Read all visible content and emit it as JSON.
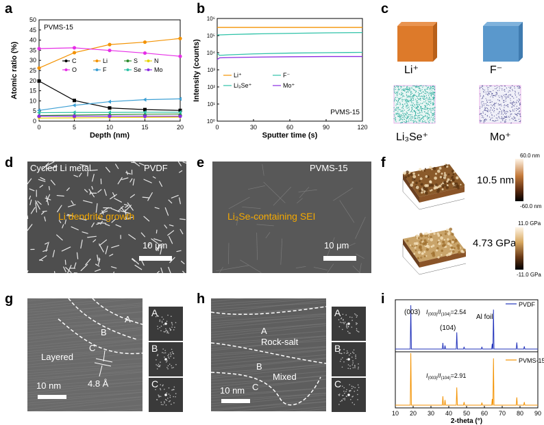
{
  "panel_letters": {
    "a": "a",
    "b": "b",
    "c": "c",
    "d": "d",
    "e": "e",
    "f": "f",
    "g": "g",
    "h": "h",
    "i": "i"
  },
  "panel_a": {
    "sample": "PVMS-15",
    "legend": [
      "C",
      "Li",
      "S",
      "N",
      "O",
      "F",
      "Se",
      "Mo"
    ]
  },
  "panel_b": {
    "sample": "PVMS-15",
    "legend": [
      "Li⁺",
      "F⁻",
      "Li₃Se⁺",
      "Mo⁺"
    ]
  },
  "panel_c": {
    "labels": [
      "Li⁺",
      "F⁻",
      "Li₃Se⁺",
      "Mo⁺"
    ],
    "colors": {
      "li": "#dd7a2a",
      "f": "#5a98cc"
    }
  },
  "panel_d": {
    "title": "Cycled Li metal",
    "tag": "PVDF",
    "caption": "Li dendrite growth",
    "scale": "10 μm"
  },
  "panel_e": {
    "tag": "PVMS-15",
    "caption": "Li₂Se-containing SEI",
    "scale": "10 μm"
  },
  "panel_f": {
    "value_top": "10.5 nm",
    "value_bottom": "4.73 GPa",
    "bar_top_max": "60.0 nm",
    "bar_top_min": "-60.0 nm",
    "bar_bottom_max": "11.0 GPa",
    "bar_bottom_min": "-11.0 GPa"
  },
  "panel_g": {
    "region_a": "A",
    "region_b": "B",
    "region_c": "C",
    "phase": "Layered",
    "spacing": "4.8 Å",
    "scale": "10 nm",
    "fft": [
      "A",
      "B",
      "C"
    ]
  },
  "panel_h": {
    "region_a": "A",
    "region_b": "B",
    "region_c": "C",
    "phase_top": "Rock-salt",
    "phase_mid": "Mixed",
    "scale": "10 nm",
    "fft": [
      "A",
      "B",
      "C"
    ]
  },
  "panel_i": {
    "top_legend": "PVDF",
    "bottom_legend": "PVMS-15",
    "peak_003": "(003)",
    "peak_104": "(104)",
    "al_foil": "Al foil",
    "ratio_top": "=2.54",
    "ratio_bottom": "=2.91",
    "ratio_prefix": "I(003)/I(104)"
  },
  "chart_data": [
    {
      "type": "line",
      "panel": "a",
      "xlabel": "Depth (nm)",
      "ylabel": "Atomic ratio (%)",
      "xlim": [
        0,
        20
      ],
      "ylim": [
        0,
        50
      ],
      "xticks": [
        0,
        5,
        10,
        15,
        20
      ],
      "yticks": [
        0,
        5,
        10,
        15,
        20,
        25,
        30,
        35,
        40,
        45,
        50
      ],
      "x": [
        0,
        5,
        10,
        15,
        20
      ],
      "series": [
        {
          "name": "C",
          "color": "#000000",
          "values": [
            19.8,
            10.2,
            6.5,
            5.7,
            5.3
          ]
        },
        {
          "name": "Li",
          "color": "#f39200",
          "values": [
            26.2,
            33.8,
            37.8,
            39.0,
            40.8
          ]
        },
        {
          "name": "S",
          "color": "#2c8a2c",
          "values": [
            2.8,
            3.0,
            3.2,
            3.4,
            3.5
          ]
        },
        {
          "name": "N",
          "color": "#e6d200",
          "values": [
            1.5,
            1.6,
            1.8,
            1.9,
            2.0
          ]
        },
        {
          "name": "O",
          "color": "#e62ee6",
          "values": [
            35.8,
            36.2,
            34.9,
            33.6,
            32.0
          ]
        },
        {
          "name": "F",
          "color": "#3c9fd4",
          "values": [
            5.3,
            7.8,
            9.6,
            10.6,
            11.0
          ]
        },
        {
          "name": "Se",
          "color": "#2ec2a8",
          "values": [
            4.2,
            4.3,
            4.3,
            4.4,
            4.4
          ]
        },
        {
          "name": "Mo",
          "color": "#8a2be2",
          "values": [
            2.4,
            2.4,
            2.4,
            2.4,
            2.4
          ]
        }
      ]
    },
    {
      "type": "line",
      "panel": "b",
      "xlabel": "Sputter time (s)",
      "ylabel": "Intensity (counts)",
      "xlim": [
        0,
        120
      ],
      "ylim": [
        1,
        1000000
      ],
      "yscale": "log",
      "xticks": [
        0,
        30,
        60,
        90,
        120
      ],
      "yticks": [
        "10⁰",
        "10¹",
        "10²",
        "10³",
        "10⁴",
        "10⁵",
        "10⁶"
      ],
      "x": [
        0,
        2,
        10,
        30,
        60,
        90,
        120
      ],
      "series": [
        {
          "name": "Li⁺",
          "color": "#f39200",
          "values": [
            300000,
            300000,
            300000,
            300000,
            300000,
            300000,
            300000
          ]
        },
        {
          "name": "F⁻",
          "color": "#2ec2a8",
          "values": [
            110000,
            110000,
            115000,
            125000,
            135000,
            145000,
            150000
          ]
        },
        {
          "name": "Li₃Se⁺",
          "color": "#2ec2a8",
          "values": [
            9000,
            7000,
            7500,
            8500,
            9500,
            10000,
            10500
          ]
        },
        {
          "name": "Mo⁺",
          "color": "#8a2be2",
          "values": [
            4000,
            5000,
            5200,
            5500,
            5800,
            6000,
            6000
          ]
        }
      ]
    },
    {
      "type": "line",
      "panel": "i",
      "xlabel": "2-theta (°)",
      "ylabel": "",
      "xlim": [
        10,
        90
      ],
      "xticks": [
        10,
        20,
        30,
        40,
        50,
        60,
        70,
        80,
        90
      ],
      "series": [
        {
          "name": "PVDF",
          "color": "#2233bb",
          "peaks": [
            [
              18.7,
              1.0
            ],
            [
              36.7,
              0.14
            ],
            [
              37.9,
              0.08
            ],
            [
              44.5,
              0.38
            ],
            [
              48.6,
              0.05
            ],
            [
              58.6,
              0.05
            ],
            [
              64.4,
              0.12
            ],
            [
              65.1,
              0.9
            ],
            [
              78.2,
              0.15
            ],
            [
              82.4,
              0.06
            ]
          ]
        },
        {
          "name": "PVMS-15",
          "color": "#f39200",
          "peaks": [
            [
              18.7,
              1.0
            ],
            [
              36.7,
              0.17
            ],
            [
              37.9,
              0.1
            ],
            [
              44.5,
              0.34
            ],
            [
              48.6,
              0.06
            ],
            [
              58.6,
              0.05
            ],
            [
              64.4,
              0.12
            ],
            [
              65.1,
              0.9
            ],
            [
              78.2,
              0.15
            ],
            [
              82.4,
              0.06
            ]
          ]
        }
      ]
    }
  ]
}
